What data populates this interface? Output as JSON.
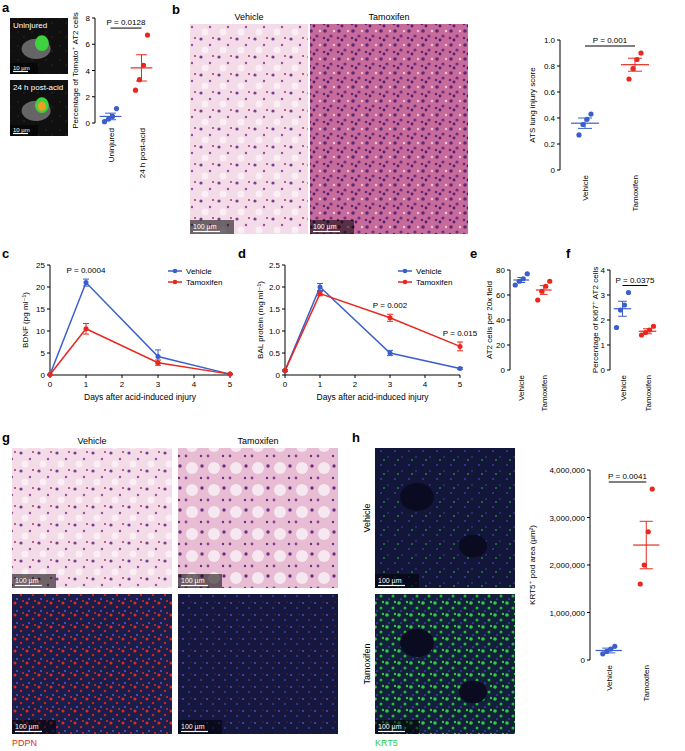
{
  "chart_data": [
    {
      "type": "dot",
      "y_label": "Percentage of Tomato⁺ AT2 cells",
      "categories": [
        "Uninjured",
        "24 h post-acid"
      ],
      "values": [
        0.5,
        4.2
      ],
      "errors": [
        0.25,
        1.0
      ],
      "points": [
        [
          0.1,
          0.3,
          0.5,
          1.1
        ],
        [
          2.5,
          3.3,
          4.4,
          6.7
        ]
      ],
      "colors": [
        "#3a5fcd",
        "#e8281e"
      ],
      "ylim": [
        0,
        8
      ],
      "yticks": [
        0,
        2,
        4,
        6,
        8
      ],
      "annotation": "P = 0.0128"
    },
    {
      "type": "dot",
      "y_label": "ATS lung injury score",
      "categories": [
        "Vehicle",
        "Tamoxifen"
      ],
      "values": [
        0.36,
        0.81
      ],
      "errors": [
        0.04,
        0.05
      ],
      "points": [
        [
          0.27,
          0.35,
          0.39,
          0.43
        ],
        [
          0.7,
          0.78,
          0.85,
          0.9
        ]
      ],
      "colors": [
        "#3a5fcd",
        "#e8281e"
      ],
      "ylim": [
        0,
        1
      ],
      "yticks": [
        0,
        0.2,
        0.4,
        0.6,
        0.8,
        {
          "value": 1,
          "label": "1.0"
        }
      ],
      "annotation": "P = 0.001"
    },
    {
      "type": "line",
      "y_label": "BDNF (pg ml⁻¹)",
      "x_label": "Days after acid-induced injury",
      "x": [
        0,
        1,
        3,
        5
      ],
      "xlim": [
        0,
        5
      ],
      "xticks": [
        0,
        1,
        2,
        3,
        4,
        5
      ],
      "ylim": [
        0,
        25
      ],
      "yticks": [
        0,
        5,
        10,
        15,
        20,
        25
      ],
      "legend": "top-right",
      "series": [
        {
          "name": "Vehicle",
          "color": "#3a5fcd",
          "marker": "circle",
          "values": [
            0.1,
            21,
            4.2,
            0.2
          ],
          "errors": [
            0,
            0.8,
            1.5,
            0.1
          ]
        },
        {
          "name": "Tamoxifen",
          "color": "#e8281e",
          "marker": "circle",
          "values": [
            0.1,
            10.5,
            2.8,
            0.2
          ],
          "errors": [
            0,
            1.2,
            0.6,
            0.1
          ]
        }
      ],
      "annotations": [
        {
          "text": "P = 0.0004",
          "x": 1
        }
      ]
    },
    {
      "type": "line",
      "y_label": "BAL protein (mg ml⁻¹)",
      "x_label": "Days after acid-induced injury",
      "x": [
        0,
        1,
        3,
        5
      ],
      "xlim": [
        0,
        5
      ],
      "xticks": [
        0,
        1,
        2,
        3,
        4,
        5
      ],
      "ylim": [
        0,
        2.5
      ],
      "yticks": [
        0,
        0.5,
        {
          "value": 1,
          "label": "1.0"
        },
        1.5,
        {
          "value": 2,
          "label": "2.0"
        },
        2.5
      ],
      "legend": "top-right",
      "series": [
        {
          "name": "Vehicle",
          "color": "#3a5fcd",
          "marker": "circle",
          "values": [
            0.1,
            2.0,
            0.5,
            0.15
          ],
          "errors": [
            0.02,
            0.08,
            0.06,
            0.02
          ]
        },
        {
          "name": "Tamoxifen",
          "color": "#e8281e",
          "marker": "circle",
          "values": [
            0.1,
            1.85,
            1.3,
            0.65
          ],
          "errors": [
            0.02,
            0.05,
            0.08,
            0.1
          ]
        }
      ],
      "annotations": [
        {
          "text": "P = 0.002",
          "x": 3
        },
        {
          "text": "P = 0.015",
          "x": 5
        }
      ]
    },
    {
      "type": "dot",
      "y_label": "AT2 cells per 20x field",
      "categories": [
        "Vehicle",
        "Tamoxifen"
      ],
      "values": [
        72,
        64
      ],
      "errors": [
        2,
        3.5
      ],
      "points": [
        [
          68,
          71,
          73,
          77
        ],
        [
          56,
          63,
          67,
          71
        ]
      ],
      "colors": [
        "#3a5fcd",
        "#e8281e"
      ],
      "ylim": [
        0,
        80
      ],
      "yticks": [
        0,
        20,
        40,
        60,
        80
      ]
    },
    {
      "type": "dot",
      "y_label": "Percentage of Ki67⁺ AT2 cells",
      "categories": [
        "Vehicle",
        "Tamoxifen"
      ],
      "values": [
        2.45,
        1.55
      ],
      "errors": [
        0.3,
        0.1
      ],
      "points": [
        [
          1.7,
          2.4,
          2.6,
          3.1
        ],
        [
          1.4,
          1.5,
          1.6,
          1.75
        ]
      ],
      "colors": [
        "#3a5fcd",
        "#e8281e"
      ],
      "ylim": [
        0,
        4
      ],
      "yticks": [
        0,
        1,
        2,
        3,
        4
      ],
      "annotation": "P = 0.0375"
    },
    {
      "type": "dot",
      "y_label": "KRT5⁺ pod area (µm²)",
      "categories": [
        "Vehicle",
        "Tamoxifen"
      ],
      "values": [
        200000,
        2420000
      ],
      "errors": [
        50000,
        500000
      ],
      "points": [
        [
          130000,
          180000,
          230000,
          290000
        ],
        [
          1600000,
          2000000,
          2700000,
          3600000
        ]
      ],
      "colors": [
        "#3a5fcd",
        "#e8281e"
      ],
      "ylim": [
        0,
        4000000
      ],
      "yticks": [
        0,
        {
          "value": 1000000,
          "label": "1,000,000"
        },
        {
          "value": 2000000,
          "label": "2,000,000"
        },
        {
          "value": 3000000,
          "label": "3,000,000"
        },
        {
          "value": 4000000,
          "label": "4,000,000"
        }
      ],
      "annotation": "P = 0.0041"
    }
  ],
  "panels": [
    "a",
    "b",
    "c",
    "d",
    "e",
    "f",
    "g",
    "h"
  ],
  "images": [
    {
      "kind": "confocal",
      "label": "Uninjured",
      "scale_bar": "10 µm"
    },
    {
      "kind": "confocal",
      "label": "24 h post-acid",
      "scale_bar": "10 µm"
    },
    {
      "kind": "he",
      "title": "Vehicle",
      "scale_bar": "100 µm"
    },
    {
      "kind": "he_dense",
      "title": "Tamoxifen",
      "scale_bar": "100 µm"
    },
    {
      "kind": "he",
      "title": "Vehicle",
      "scale_bar": "100 µm"
    },
    {
      "kind": "he_injured",
      "title": "Tamoxifen",
      "scale_bar": "100 µm"
    },
    {
      "kind": "pdpn",
      "scale_bar": "100 µm"
    },
    {
      "kind": "pdpn_low",
      "scale_bar": "100 µm"
    },
    {
      "kind": "krt5",
      "side_label": "Vehicle",
      "scale_bar": "100 µm"
    },
    {
      "kind": "krt5_high",
      "side_label": "Tamoxifen",
      "scale_bar": "100 µm"
    }
  ],
  "stain_labels": [
    {
      "text": "PDPN",
      "color": "#e8281e"
    },
    {
      "text": "KRT5",
      "color": "#2ecc40"
    }
  ]
}
